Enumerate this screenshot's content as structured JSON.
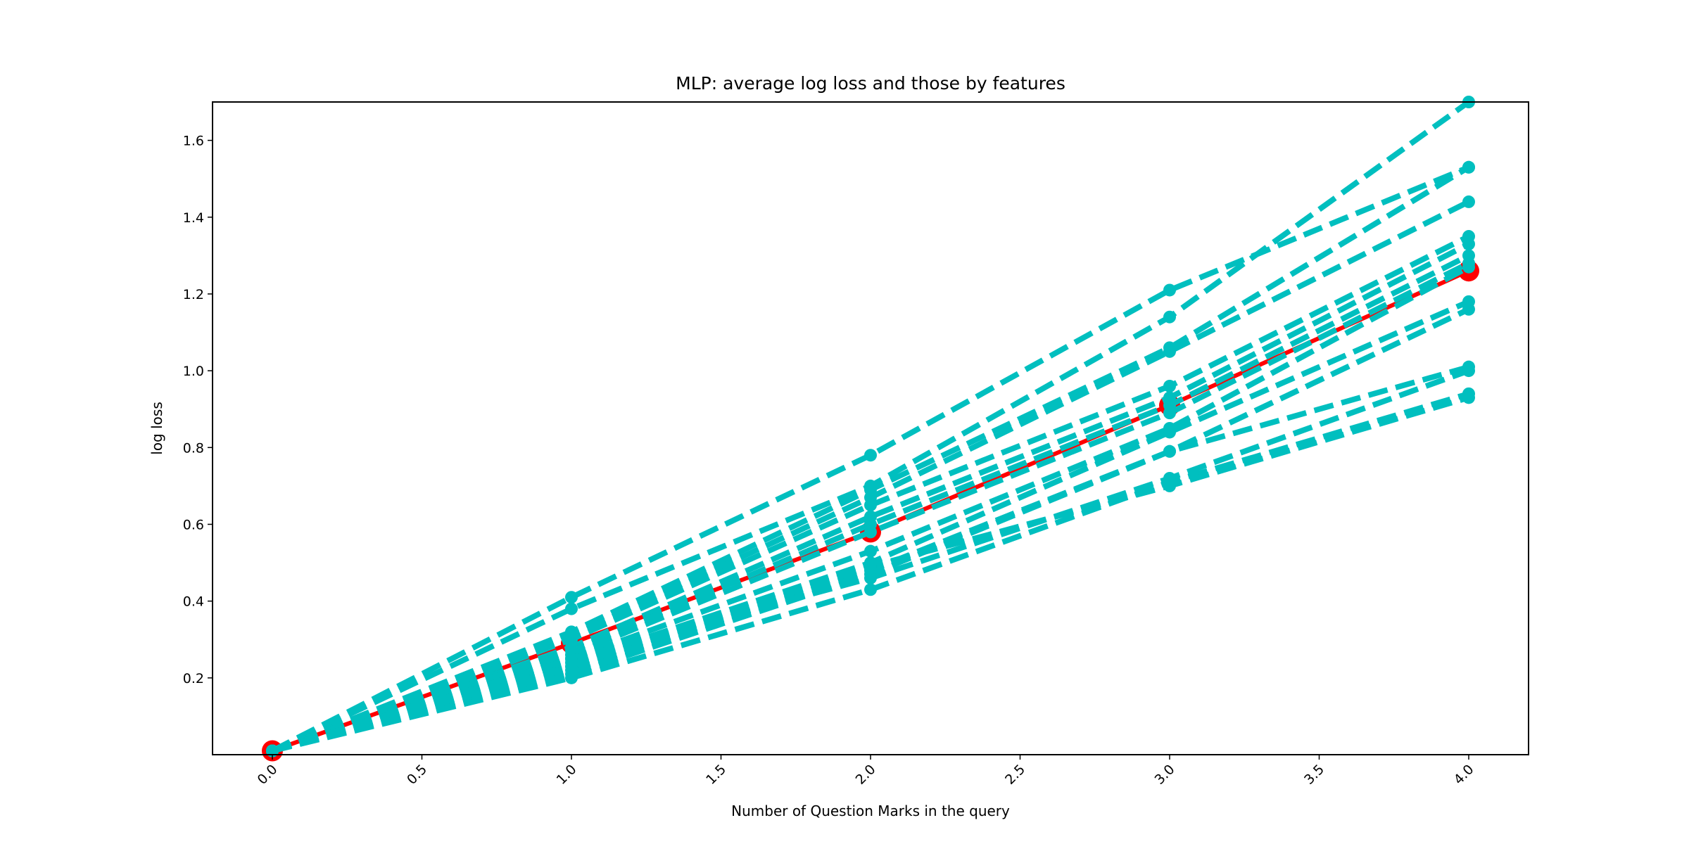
{
  "chart_data": {
    "type": "line",
    "title": "MLP: average log loss and those by features",
    "xlabel": "Number of Question Marks in the query",
    "ylabel": "log loss",
    "xlim": [
      -0.2,
      4.2
    ],
    "ylim": [
      0.0,
      1.7
    ],
    "xticks": [
      0.0,
      0.5,
      1.0,
      1.5,
      2.0,
      2.5,
      3.0,
      3.5,
      4.0
    ],
    "xtick_labels": [
      "0.0",
      "0.5",
      "1.0",
      "1.5",
      "2.0",
      "2.5",
      "3.0",
      "3.5",
      "4.0"
    ],
    "yticks": [
      0.2,
      0.4,
      0.6,
      0.8,
      1.0,
      1.2,
      1.4,
      1.6
    ],
    "ytick_labels": [
      "0.2",
      "0.4",
      "0.6",
      "0.8",
      "1.0",
      "1.2",
      "1.4",
      "1.6"
    ],
    "x": [
      0,
      1,
      2,
      3,
      4
    ],
    "grid": false,
    "average_series": {
      "color": "#ff0000",
      "values": [
        0.01,
        0.29,
        0.58,
        0.91,
        1.26
      ]
    },
    "feature_series_color": "#00bfbf",
    "feature_series": [
      {
        "values": [
          0.01,
          0.41,
          0.78,
          1.21,
          1.53
        ]
      },
      {
        "values": [
          0.01,
          0.38,
          0.7,
          1.14,
          1.7
        ]
      },
      {
        "values": [
          0.01,
          0.32,
          0.69,
          1.06,
          1.53
        ]
      },
      {
        "values": [
          0.01,
          0.31,
          0.67,
          1.05,
          1.44
        ]
      },
      {
        "values": [
          0.01,
          0.3,
          0.65,
          0.96,
          1.35
        ]
      },
      {
        "values": [
          0.01,
          0.28,
          0.62,
          0.93,
          1.33
        ]
      },
      {
        "values": [
          0.01,
          0.27,
          0.6,
          0.91,
          1.3
        ]
      },
      {
        "values": [
          0.01,
          0.26,
          0.58,
          0.89,
          1.28
        ]
      },
      {
        "values": [
          0.01,
          0.25,
          0.53,
          0.85,
          1.27
        ]
      },
      {
        "values": [
          0.01,
          0.24,
          0.5,
          0.84,
          1.18
        ]
      },
      {
        "values": [
          0.01,
          0.22,
          0.48,
          0.79,
          1.16
        ]
      },
      {
        "values": [
          0.01,
          0.21,
          0.47,
          0.79,
          1.01
        ]
      },
      {
        "values": [
          0.01,
          0.2,
          0.43,
          0.71,
          0.94
        ]
      },
      {
        "values": [
          0.01,
          0.23,
          0.49,
          0.7,
          0.93
        ]
      },
      {
        "values": [
          0.01,
          0.25,
          0.46,
          0.72,
          1.0
        ]
      }
    ]
  }
}
